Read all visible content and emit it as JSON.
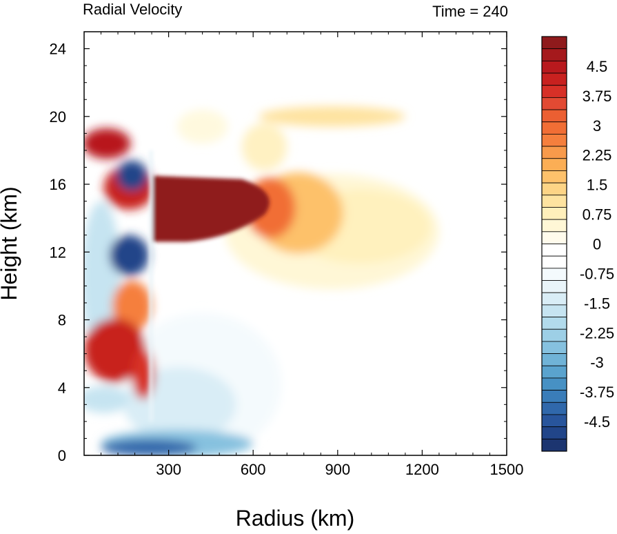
{
  "chart_data": {
    "type": "heatmap",
    "title_left": "Radial Velocity",
    "title_right": "Time = 240",
    "xlabel": "Radius (km)",
    "ylabel": "Height (km)",
    "xlim": [
      0,
      1500
    ],
    "ylim": [
      0,
      25
    ],
    "x_ticks": [
      300,
      600,
      900,
      1200,
      1500
    ],
    "x_tick_labels": [
      "300",
      "600",
      "900",
      "1200",
      "1500"
    ],
    "y_ticks": [
      0,
      4,
      8,
      12,
      16,
      20,
      24
    ],
    "y_tick_labels": [
      "0",
      "4",
      "8",
      "12",
      "16",
      "20",
      "24"
    ],
    "colorbar": {
      "levels_min": -5.25,
      "levels_max": 5.25,
      "step": 0.25,
      "tick_values": [
        4.5,
        3.75,
        3,
        2.25,
        1.5,
        0.75,
        0,
        -0.75,
        -1.5,
        -2.25,
        -3,
        -3.75,
        -4.5
      ],
      "tick_labels": [
        "4.5",
        "3.75",
        "3",
        "2.25",
        "1.5",
        "0.75",
        "0",
        "-0.75",
        "-1.5",
        "-2.25",
        "-3",
        "-3.75",
        "-4.5"
      ],
      "colors_high_to_low": [
        "#8f1a1c",
        "#a5191c",
        "#b8191d",
        "#c8211f",
        "#d73027",
        "#e24a33",
        "#eb5f32",
        "#f16e35",
        "#f57f3d",
        "#f89a4b",
        "#fbae55",
        "#fdc16b",
        "#fdd486",
        "#fee3a0",
        "#ffefbb",
        "#fff7d6",
        "#fffbec",
        "#ffffff",
        "#ffffff",
        "#f4fafd",
        "#e9f4f9",
        "#d9edf6",
        "#c6e4f1",
        "#b2dbec",
        "#9dcfe6",
        "#86c1df",
        "#70b3d7",
        "#5aa3ce",
        "#4791c4",
        "#3a7db9",
        "#3068ab",
        "#28559c",
        "#214589",
        "#1c3570"
      ],
      "note": "red = positive (outflow), blue = negative (inflow)"
    },
    "features": [
      {
        "name": "upper-level outflow jet",
        "r_range_km": [
          240,
          700
        ],
        "z_range_km": [
          12.5,
          16.5
        ],
        "value_approx": 5.25
      },
      {
        "name": "weak outer outflow",
        "r_range_km": [
          600,
          1250
        ],
        "z_range_km": [
          9.5,
          16
        ],
        "value_approx": 0.6
      },
      {
        "name": "upper outflow layer near 20 km",
        "r_range_km": [
          550,
          1150
        ],
        "z_range_km": [
          19.5,
          21
        ],
        "value_approx": 1.2
      },
      {
        "name": "boundary-layer inflow",
        "r_range_km": [
          0,
          550
        ],
        "z_range_km": [
          0,
          1.2
        ],
        "value_approx": -3.5
      },
      {
        "name": "mid-level inflow core",
        "r_range_km": [
          100,
          230
        ],
        "z_range_km": [
          10.5,
          13
        ],
        "value_approx": -5.0
      },
      {
        "name": "upper inflow core",
        "r_range_km": [
          100,
          230
        ],
        "z_range_km": [
          15.5,
          17
        ],
        "value_approx": -5.0
      },
      {
        "name": "low-level outflow bands",
        "r_range_km": [
          0,
          240
        ],
        "z_range_km": [
          4,
          9
        ],
        "value_approx": 4.5
      }
    ]
  }
}
